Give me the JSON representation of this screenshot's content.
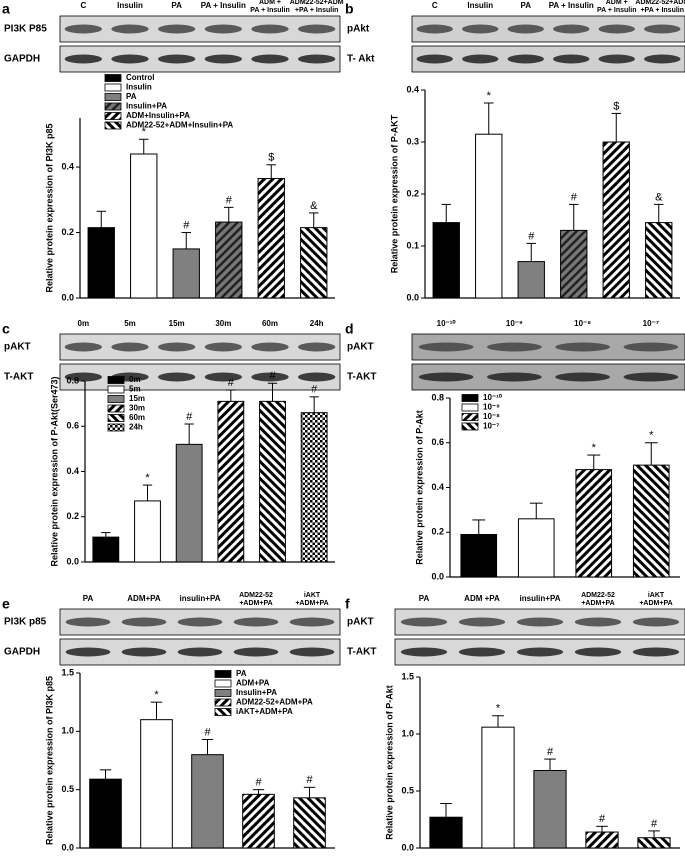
{
  "chart_data": [
    {
      "type": "bar",
      "panel": "a",
      "blot_rows": [
        "PI3K P85",
        "GAPDH"
      ],
      "lanes": [
        [
          "C"
        ],
        [
          "Insulin"
        ],
        [
          "PA"
        ],
        [
          "PA + Insulin"
        ],
        [
          "ADM +",
          "PA + Insulin"
        ],
        [
          "ADM22-52+ADM",
          "+PA + Insulin"
        ]
      ],
      "ylabel": "Relative protein expression of PI3K p85",
      "categories": [
        "Control",
        "Insulin",
        "PA",
        "Insulin+PA",
        "ADM+Insulin+PA",
        "ADM22-52+ADM+Insulin+PA"
      ],
      "values": [
        0.215,
        0.44,
        0.15,
        0.232,
        0.365,
        0.215
      ],
      "errors": [
        0.05,
        0.045,
        0.05,
        0.045,
        0.042,
        0.045
      ],
      "symbols": [
        null,
        "*",
        "#",
        "#",
        "$",
        "&"
      ],
      "patterns": [
        "black",
        "white",
        "gray",
        "stripe-gray",
        "stripe",
        "stripe-back"
      ],
      "ylim": [
        0,
        0.55
      ],
      "yticks": [
        {
          "value": 0,
          "label": "0.0"
        },
        0.2,
        0.4
      ],
      "legend": true
    },
    {
      "type": "bar",
      "panel": "b",
      "blot_rows": [
        "pAkt",
        "T- Akt"
      ],
      "lanes": [
        [
          "C"
        ],
        [
          "Insulin"
        ],
        [
          "PA"
        ],
        [
          "PA + Insulin"
        ],
        [
          "ADM +",
          "PA + Insulin"
        ],
        [
          "ADM22-52+ADM",
          "+PA + Insulin"
        ]
      ],
      "ylabel": "Relative protein expression of P-AKT",
      "values": [
        0.145,
        0.315,
        0.07,
        0.13,
        0.3,
        0.145
      ],
      "errors": [
        0.035,
        0.06,
        0.035,
        0.05,
        0.055,
        0.035
      ],
      "symbols": [
        null,
        "*",
        "#",
        "#",
        "$",
        "&"
      ],
      "patterns": [
        "black",
        "white",
        "gray",
        "stripe-gray",
        "stripe",
        "stripe-back"
      ],
      "ylim": [
        0,
        0.4
      ],
      "yticks": [
        {
          "value": 0,
          "label": "0.0"
        },
        0.1,
        0.2,
        0.3,
        0.4
      ],
      "legend": false
    },
    {
      "type": "bar",
      "panel": "c",
      "blot_rows": [
        "pAKT",
        "T-AKT"
      ],
      "lanes": [
        [
          "0m"
        ],
        [
          "5m"
        ],
        [
          "15m"
        ],
        [
          "30m"
        ],
        [
          "60m"
        ],
        [
          "24h"
        ]
      ],
      "ylabel": "Relative protein expression of P-Akt(Ser473)",
      "categories": [
        "0m",
        "5m",
        "15m",
        "30m",
        "60m",
        "24h"
      ],
      "values": [
        0.11,
        0.27,
        0.52,
        0.71,
        0.71,
        0.66
      ],
      "errors": [
        0.02,
        0.07,
        0.09,
        0.05,
        0.08,
        0.07
      ],
      "symbols": [
        null,
        "*",
        "#",
        "#",
        "#",
        "#"
      ],
      "patterns": [
        "black",
        "white",
        "gray",
        "stripe",
        "stripe-back",
        "check"
      ],
      "ylim": [
        0,
        0.8
      ],
      "yticks": [
        {
          "value": 0,
          "label": "0.0"
        },
        0.2,
        0.4,
        0.6,
        0.8
      ],
      "legend": true
    },
    {
      "type": "bar",
      "panel": "d",
      "blot_rows": [
        "pAKT",
        "T-AKT"
      ],
      "lanes": [
        [
          "10⁻¹⁰"
        ],
        [
          "10⁻⁹"
        ],
        [
          "10⁻⁸"
        ],
        [
          "10⁻⁷"
        ]
      ],
      "ylabel": "Relative protein expression of  P-Akt",
      "categories": [
        "10⁻¹⁰",
        "10⁻⁹",
        "10⁻⁸",
        "10⁻⁷"
      ],
      "values": [
        0.19,
        0.26,
        0.48,
        0.5
      ],
      "errors": [
        0.065,
        0.07,
        0.065,
        0.1
      ],
      "symbols": [
        null,
        null,
        "*",
        "*"
      ],
      "patterns": [
        "black",
        "white",
        "stripe",
        "stripe-back"
      ],
      "ylim": [
        0,
        0.8
      ],
      "yticks": [
        {
          "value": 0,
          "label": "0.0"
        },
        0.2,
        0.4,
        0.6,
        0.8
      ],
      "legend": true
    },
    {
      "type": "bar",
      "panel": "e",
      "blot_rows": [
        "PI3K p85",
        "GAPDH"
      ],
      "lanes": [
        [
          "PA"
        ],
        [
          "ADM+PA"
        ],
        [
          "insulin+PA"
        ],
        [
          "ADM22-52",
          "+ADM+PA"
        ],
        [
          "iAKT",
          "+ADM+PA"
        ]
      ],
      "ylabel": "Relative protein expression of  PI3K p85",
      "categories": [
        "PA",
        "ADM+PA",
        "Insulin+PA",
        "ADM22-52+ADM+PA",
        "iAKT+ADM+PA"
      ],
      "values": [
        0.59,
        1.1,
        0.8,
        0.46,
        0.43
      ],
      "errors": [
        0.08,
        0.15,
        0.13,
        0.04,
        0.09
      ],
      "symbols": [
        null,
        "*",
        "#",
        "#",
        "#"
      ],
      "patterns": [
        "black",
        "white",
        "gray",
        "stripe",
        "stripe-back"
      ],
      "ylim": [
        0,
        1.5
      ],
      "yticks": [
        {
          "value": 0,
          "label": "0.0"
        },
        0.5,
        {
          "value": 1,
          "label": "1.0"
        },
        1.5
      ],
      "legend": true
    },
    {
      "type": "bar",
      "panel": "f",
      "blot_rows": [
        "pAKT",
        "T-AKT"
      ],
      "lanes": [
        [
          "PA"
        ],
        [
          "ADM +PA"
        ],
        [
          "insulin+PA"
        ],
        [
          "ADM22-52",
          "+ADM+PA"
        ],
        [
          "iAKT",
          "+ADM+PA"
        ]
      ],
      "ylabel": "Relative protein expression of  P-Akt",
      "values": [
        0.27,
        1.06,
        0.68,
        0.14,
        0.09
      ],
      "errors": [
        0.12,
        0.1,
        0.1,
        0.05,
        0.06
      ],
      "symbols": [
        null,
        "*",
        "#",
        "#",
        "#"
      ],
      "patterns": [
        "black",
        "white",
        "gray",
        "stripe",
        "stripe-back"
      ],
      "ylim": [
        0,
        1.5
      ],
      "yticks": [
        {
          "value": 0,
          "label": "0.0"
        },
        0.5,
        {
          "value": 1,
          "label": "1.0"
        },
        1.5
      ],
      "legend": false
    }
  ]
}
